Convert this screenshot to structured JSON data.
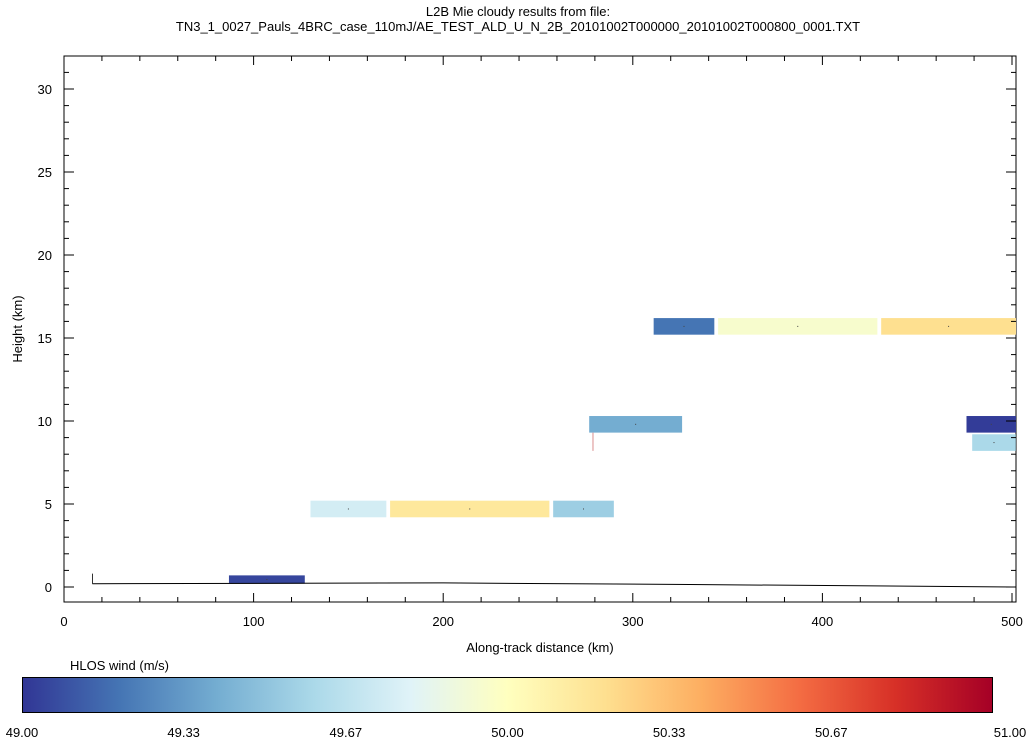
{
  "title": {
    "line1": "L2B Mie cloudy results from file:",
    "line2": "TN3_1_0027_Pauls_4BRC_case_110mJ/AE_TEST_ALD_U_N_2B_20101002T000000_20101002T000800_0001.TXT"
  },
  "chart_data": {
    "type": "heatmap",
    "xlabel": "Along-track distance (km)",
    "ylabel": "Height (km)",
    "xlim": [
      0,
      500
    ],
    "ylim": [
      -1,
      32
    ],
    "xticks": [
      "0",
      "100",
      "200",
      "300",
      "400",
      "500"
    ],
    "yticks": [
      "0",
      "5",
      "10",
      "15",
      "20",
      "25",
      "30"
    ],
    "x_tick_values": [
      0,
      100,
      200,
      300,
      400,
      500
    ],
    "y_tick_values": [
      0,
      5,
      10,
      15,
      20,
      25,
      30
    ],
    "grid": false,
    "colorbar": {
      "label": "HLOS wind (m/s)",
      "range": [
        49.0,
        51.0
      ],
      "tick_labels": [
        "49.00",
        "49.33",
        "49.67",
        "50.00",
        "50.33",
        "50.67",
        "51.00"
      ],
      "tick_values": [
        49.0,
        49.333,
        49.667,
        50.0,
        50.333,
        50.667,
        51.0
      ],
      "colors": [
        "#313695",
        "#4575b4",
        "#74add1",
        "#abd9e9",
        "#e0f3f8",
        "#ffffbf",
        "#fee090",
        "#fdae61",
        "#f46d43",
        "#d73027",
        "#a50026"
      ]
    },
    "cells": [
      {
        "x0": 87,
        "x1": 127,
        "y0": 0.2,
        "y1": 0.7,
        "value": 49.05
      },
      {
        "x0": 130,
        "x1": 170,
        "y0": 4.2,
        "y1": 5.2,
        "value": 49.75
      },
      {
        "x0": 172,
        "x1": 256,
        "y0": 4.2,
        "y1": 5.2,
        "value": 50.15
      },
      {
        "x0": 258,
        "x1": 290,
        "y0": 4.2,
        "y1": 5.2,
        "value": 49.55
      },
      {
        "x0": 277,
        "x1": 326,
        "y0": 9.3,
        "y1": 10.3,
        "value": 49.4
      },
      {
        "x0": 311,
        "x1": 343,
        "y0": 15.2,
        "y1": 16.2,
        "value": 49.2
      },
      {
        "x0": 345,
        "x1": 429,
        "y0": 15.2,
        "y1": 16.2,
        "value": 49.95
      },
      {
        "x0": 431,
        "x1": 515,
        "y0": 15.2,
        "y1": 16.2,
        "value": 50.2
      },
      {
        "x0": 476,
        "x1": 515,
        "y0": 9.3,
        "y1": 10.3,
        "value": 49.02
      },
      {
        "x0": 479,
        "x1": 502,
        "y0": 8.2,
        "y1": 9.2,
        "value": 49.6
      }
    ],
    "ground": {
      "x": [
        15,
        200,
        330,
        500
      ],
      "y": [
        0.2,
        0.25,
        0.15,
        0.0
      ]
    }
  }
}
